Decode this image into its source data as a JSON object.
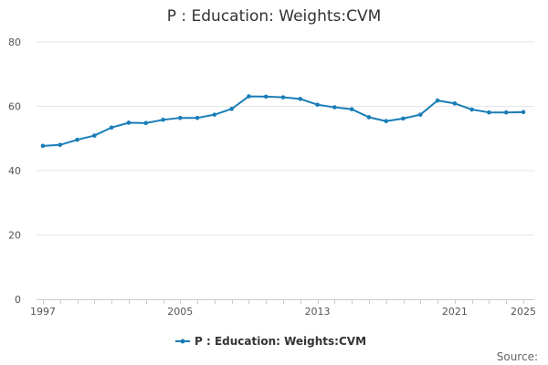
{
  "chart_data": {
    "type": "line",
    "title": "P : Education: Weights:CVM",
    "xlabel": "",
    "ylabel": "",
    "x": [
      1997,
      1998,
      1999,
      2000,
      2001,
      2002,
      2003,
      2004,
      2005,
      2006,
      2007,
      2008,
      2009,
      2010,
      2011,
      2012,
      2013,
      2014,
      2015,
      2016,
      2017,
      2018,
      2019,
      2020,
      2021,
      2022,
      2023,
      2024,
      2025
    ],
    "series": [
      {
        "name": "P : Education: Weights:CVM",
        "color": "#1a7db7",
        "values": [
          47.7,
          48.0,
          49.6,
          50.9,
          53.4,
          54.9,
          54.8,
          55.8,
          56.4,
          56.4,
          57.4,
          59.2,
          63.1,
          63.0,
          62.8,
          62.3,
          60.5,
          59.7,
          59.1,
          56.6,
          55.4,
          56.2,
          57.4,
          61.8,
          60.9,
          59.0,
          58.1,
          58.1,
          58.2
        ]
      }
    ],
    "xlim": [
      1997,
      2025
    ],
    "ylim": [
      0,
      80
    ],
    "yticks": [
      0,
      20,
      40,
      60,
      80
    ],
    "xtick_labels": [
      "1997",
      "2005",
      "2013",
      "2021",
      "2025"
    ],
    "grid": "horizontal",
    "legend_position": "bottom"
  },
  "source_label": "Source:"
}
